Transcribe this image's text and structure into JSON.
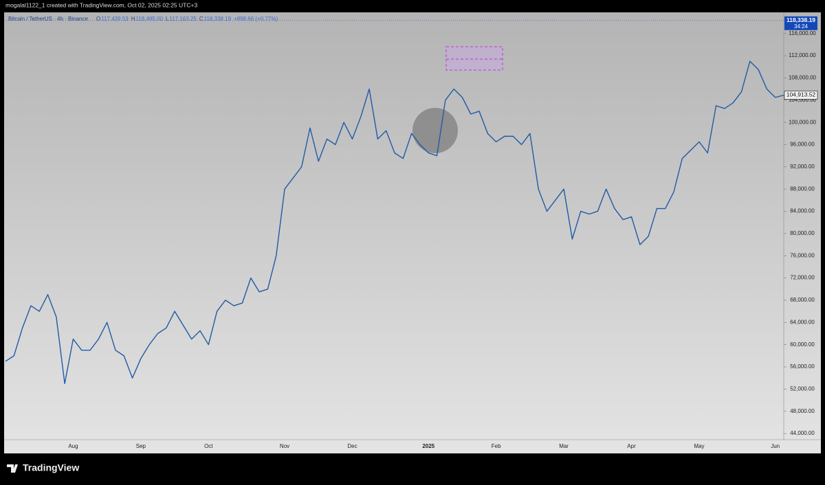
{
  "top_bar": "mogalal1122_1 created with TradingView.com, Oct 02, 2025 02:25 UTC+3",
  "footer": "TradingView",
  "chart_data": {
    "type": "line",
    "legend_header": {
      "symbol": "Bitcoin / TetherUS · 4h · Binance",
      "ohlc": [
        {
          "key": "O",
          "value": "117,439.53"
        },
        {
          "key": "H",
          "value": "118,485.00"
        },
        {
          "key": "L",
          "value": "117,163.25"
        },
        {
          "key": "C",
          "value": "118,338.19"
        }
      ],
      "change": "+898.66 (+0.77%)"
    },
    "categories": [
      null,
      null,
      null,
      null,
      null,
      null,
      null,
      null,
      "Aug",
      null,
      null,
      null,
      null,
      null,
      null,
      null,
      "Sep",
      null,
      null,
      null,
      null,
      null,
      null,
      null,
      "Oct",
      null,
      null,
      null,
      null,
      null,
      null,
      null,
      null,
      "Nov",
      null,
      null,
      null,
      null,
      null,
      null,
      null,
      "Dec",
      null,
      null,
      null,
      null,
      null,
      null,
      null,
      null,
      "2025",
      null,
      null,
      null,
      null,
      null,
      null,
      null,
      "Feb",
      null,
      null,
      null,
      null,
      null,
      null,
      null,
      "Mar",
      null,
      null,
      null,
      null,
      null,
      null,
      null,
      "Apr",
      null,
      null,
      null,
      null,
      null,
      null,
      null,
      "May",
      null,
      null,
      null,
      null,
      null,
      null,
      null,
      null,
      "Jun",
      null
    ],
    "series": [
      {
        "name": "BTCUSDT",
        "color": "#1f5aa6",
        "values": [
          57000,
          58000,
          63000,
          67000,
          66000,
          69000,
          65000,
          53000,
          61000,
          59000,
          59000,
          61000,
          64000,
          59000,
          58000,
          54000,
          57500,
          60000,
          62000,
          63000,
          66000,
          63500,
          61000,
          62500,
          60000,
          66000,
          68000,
          67000,
          67500,
          72000,
          69500,
          70000,
          76000,
          88000,
          90000,
          92000,
          99000,
          93000,
          97000,
          96000,
          100000,
          97000,
          101000,
          106000,
          97000,
          98500,
          94500,
          93500,
          98000,
          96000,
          94500,
          94000,
          104000,
          106000,
          104500,
          101500,
          102000,
          98000,
          96500,
          97500,
          97500,
          96000,
          98000,
          88000,
          84000,
          86000,
          88000,
          79000,
          84000,
          83500,
          84000,
          88000,
          84500,
          82500,
          83000,
          78000,
          79500,
          84500,
          84500,
          87500,
          93500,
          95000,
          96500,
          94500,
          103000,
          102500,
          103500,
          105500,
          111000,
          109500,
          106000,
          104500,
          104900
        ]
      }
    ],
    "ylim": [
      42900,
      119800
    ],
    "yticks": [
      {
        "value": 44000,
        "label": "44,000.00"
      },
      {
        "value": 48000,
        "label": "48,000.00"
      },
      {
        "value": 52000,
        "label": "52,000.00"
      },
      {
        "value": 56000,
        "label": "56,000.00"
      },
      {
        "value": 60000,
        "label": "60,000.00"
      },
      {
        "value": 64000,
        "label": "64,000.00"
      },
      {
        "value": 68000,
        "label": "68,000.00"
      },
      {
        "value": 72000,
        "label": "72,000.00"
      },
      {
        "value": 76000,
        "label": "76,000.00"
      },
      {
        "value": 80000,
        "label": "80,000.00"
      },
      {
        "value": 84000,
        "label": "84,000.00"
      },
      {
        "value": 88000,
        "label": "88,000.00"
      },
      {
        "value": 92000,
        "label": "92,000.00"
      },
      {
        "value": 96000,
        "label": "96,000.00"
      },
      {
        "value": 100000,
        "label": "100,000.00"
      },
      {
        "value": 104000,
        "label": "104,000.00"
      },
      {
        "value": 108000,
        "label": "108,000.00"
      },
      {
        "value": 112000,
        "label": "112,000.00"
      },
      {
        "value": 116000,
        "label": "116,000.00"
      }
    ],
    "price_labels": [
      {
        "value": 118338.19,
        "label": "118,338.19",
        "countdown": "34:24"
      },
      {
        "value": 104913.52,
        "label": "104,913.52"
      }
    ],
    "grid": false
  }
}
